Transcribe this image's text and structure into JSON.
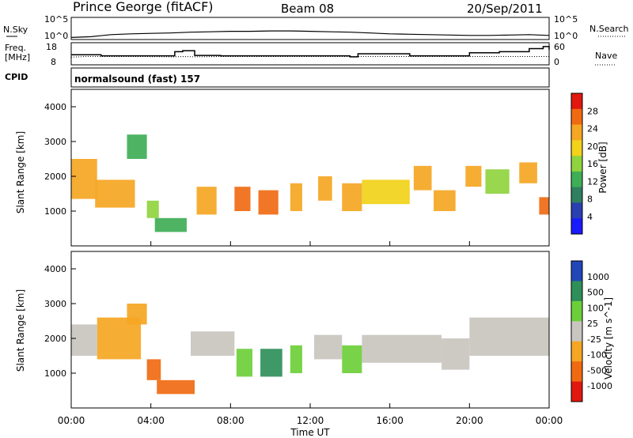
{
  "header": {
    "station": "Prince George (fitACF)",
    "beam": "Beam 08",
    "date": "20/Sep/2011"
  },
  "noise_panel": {
    "left_label": "N.Sky",
    "right_label": "N.Search",
    "left_ticks": [
      "10^5",
      "10^0"
    ],
    "right_ticks": [
      "10^5",
      "10^0"
    ]
  },
  "freq_panel": {
    "left_label_top": "Freq.",
    "left_label_bottom": "[MHz]",
    "left_ticks": [
      "18",
      "8"
    ],
    "right_label": "Nave",
    "right_ticks": [
      "60",
      "0"
    ]
  },
  "cpid": {
    "label": "CPID",
    "text": "normalsound (fast) 157"
  },
  "power_panel": {
    "ylabel": "Slant Range [km]",
    "yticks": [
      "4000",
      "3000",
      "2000",
      "1000"
    ],
    "colorbar_label": "Power [dB]",
    "colorbar_ticks": [
      "28",
      "24",
      "20",
      "16",
      "12",
      "8",
      "4"
    ],
    "colors": [
      "#1a1aff",
      "#2a3fb0",
      "#2f7f60",
      "#3fae57",
      "#8fd43f",
      "#f2d21a",
      "#f5a623",
      "#f06a12",
      "#e0180f"
    ]
  },
  "velocity_panel": {
    "ylabel": "Slant Range [km]",
    "yticks": [
      "4000",
      "3000",
      "2000",
      "1000"
    ],
    "colorbar_label": "Velocity [m s^-1]",
    "colorbar_ticks": [
      "1000",
      "500",
      "100",
      "25",
      "-25",
      "-100",
      "-500",
      "-1000"
    ],
    "colors": [
      "#2046b8",
      "#2f8f5a",
      "#6ccf3a",
      "#c9c6bf",
      "#f5a623",
      "#f06a12",
      "#e0180f"
    ]
  },
  "xaxis": {
    "label": "Time UT",
    "ticks": [
      "00:00",
      "04:00",
      "08:00",
      "12:00",
      "16:00",
      "20:00",
      "00:00"
    ]
  },
  "chart_data": [
    {
      "type": "line",
      "title": "N.Sky / N.Search",
      "x_hours": [
        0,
        1,
        2,
        3,
        4,
        5,
        6,
        7,
        8,
        9,
        10,
        11,
        12,
        13,
        14,
        15,
        16,
        17,
        18,
        19,
        20,
        21,
        22,
        23,
        24
      ],
      "series": [
        {
          "name": "N.Sky",
          "values_log10": [
            0.3,
            0.5,
            1.0,
            1.2,
            1.3,
            1.4,
            1.6,
            1.7,
            1.8,
            1.8,
            1.9,
            1.9,
            1.8,
            1.7,
            1.6,
            1.4,
            1.2,
            1.1,
            1.0,
            0.9,
            0.8,
            0.8,
            0.9,
            1.0,
            0.8
          ]
        }
      ],
      "ylim_log10": [
        0,
        5
      ]
    },
    {
      "type": "line",
      "title": "Freq. / Nave",
      "x_hours": [
        0,
        0.7,
        1.5,
        3.5,
        5.2,
        5.6,
        6.2,
        7.5,
        10,
        14,
        14.4,
        17,
        19.4,
        20,
        21.5,
        23,
        23.7,
        24
      ],
      "series": [
        {
          "name": "Freq. [MHz]",
          "values": [
            12.5,
            12.5,
            12.0,
            12.0,
            14.0,
            14.5,
            12.2,
            12.0,
            12.0,
            11.5,
            13.0,
            12.0,
            12.0,
            13.5,
            14.0,
            15.5,
            16.5,
            15.0
          ]
        },
        {
          "name": "Nave",
          "values": [
            20,
            22,
            22,
            22,
            21,
            22,
            21,
            22,
            22,
            22,
            22,
            22,
            22,
            22,
            22,
            22,
            22,
            22
          ]
        }
      ],
      "ylim": [
        8,
        18
      ],
      "y2lim": [
        0,
        60
      ]
    },
    {
      "type": "heatmap",
      "title": "Power [dB]",
      "xlabel": "Time UT",
      "ylabel": "Slant Range [km]",
      "x_hours_range": [
        0,
        24
      ],
      "ylim": [
        0,
        4500
      ],
      "colorbar_range": [
        0,
        30
      ],
      "regions": [
        {
          "t0": 0.0,
          "t1": 1.3,
          "r0": 1350,
          "r1": 2500,
          "value": 22
        },
        {
          "t0": 1.2,
          "t1": 3.2,
          "r0": 1100,
          "r1": 1900,
          "value": 20
        },
        {
          "t0": 2.8,
          "t1": 3.8,
          "r0": 2500,
          "r1": 3200,
          "value": 12
        },
        {
          "t0": 3.8,
          "t1": 4.4,
          "r0": 800,
          "r1": 1300,
          "value": 14
        },
        {
          "t0": 4.2,
          "t1": 5.8,
          "r0": 400,
          "r1": 800,
          "value": 10
        },
        {
          "t0": 6.3,
          "t1": 7.3,
          "r0": 900,
          "r1": 1700,
          "value": 22
        },
        {
          "t0": 8.2,
          "t1": 9.0,
          "r0": 1000,
          "r1": 1700,
          "value": 24
        },
        {
          "t0": 9.4,
          "t1": 10.4,
          "r0": 900,
          "r1": 1600,
          "value": 24
        },
        {
          "t0": 11.0,
          "t1": 11.6,
          "r0": 1000,
          "r1": 1800,
          "value": 22
        },
        {
          "t0": 12.4,
          "t1": 13.1,
          "r0": 1300,
          "r1": 2000,
          "value": 20
        },
        {
          "t0": 13.6,
          "t1": 14.6,
          "r0": 1000,
          "r1": 1800,
          "value": 22
        },
        {
          "t0": 14.6,
          "t1": 17.0,
          "r0": 1200,
          "r1": 1900,
          "value": 18
        },
        {
          "t0": 17.2,
          "t1": 18.1,
          "r0": 1600,
          "r1": 2300,
          "value": 22
        },
        {
          "t0": 18.2,
          "t1": 19.3,
          "r0": 1000,
          "r1": 1600,
          "value": 20
        },
        {
          "t0": 19.8,
          "t1": 20.6,
          "r0": 1700,
          "r1": 2300,
          "value": 20
        },
        {
          "t0": 20.8,
          "t1": 22.0,
          "r0": 1500,
          "r1": 2200,
          "value": 14
        },
        {
          "t0": 22.5,
          "t1": 23.4,
          "r0": 1800,
          "r1": 2400,
          "value": 22
        },
        {
          "t0": 23.5,
          "t1": 24.0,
          "r0": 900,
          "r1": 1400,
          "value": 24
        }
      ]
    },
    {
      "type": "heatmap",
      "title": "Velocity [m s^-1]",
      "xlabel": "Time UT",
      "ylabel": "Slant Range [km]",
      "x_hours_range": [
        0,
        24
      ],
      "ylim": [
        0,
        4500
      ],
      "colorbar_range": [
        -1000,
        1000
      ],
      "regions": [
        {
          "t0": 0.0,
          "t1": 1.3,
          "r0": 1500,
          "r1": 2400,
          "value": 0
        },
        {
          "t0": 1.3,
          "t1": 3.5,
          "r0": 1400,
          "r1": 2600,
          "value": -200
        },
        {
          "t0": 2.8,
          "t1": 3.8,
          "r0": 2400,
          "r1": 3000,
          "value": -300
        },
        {
          "t0": 3.8,
          "t1": 4.5,
          "r0": 800,
          "r1": 1400,
          "value": -500
        },
        {
          "t0": 4.3,
          "t1": 6.2,
          "r0": 400,
          "r1": 800,
          "value": -700
        },
        {
          "t0": 6.0,
          "t1": 8.2,
          "r0": 1500,
          "r1": 2200,
          "value": 0
        },
        {
          "t0": 8.3,
          "t1": 9.1,
          "r0": 900,
          "r1": 1700,
          "value": 400
        },
        {
          "t0": 9.5,
          "t1": 10.6,
          "r0": 900,
          "r1": 1700,
          "value": 500
        },
        {
          "t0": 11.0,
          "t1": 11.6,
          "r0": 1000,
          "r1": 1800,
          "value": 300
        },
        {
          "t0": 12.2,
          "t1": 13.6,
          "r0": 1400,
          "r1": 2100,
          "value": 0
        },
        {
          "t0": 13.6,
          "t1": 14.6,
          "r0": 1000,
          "r1": 1800,
          "value": 200
        },
        {
          "t0": 14.6,
          "t1": 18.6,
          "r0": 1300,
          "r1": 2100,
          "value": 0
        },
        {
          "t0": 18.6,
          "t1": 20.0,
          "r0": 1100,
          "r1": 2000,
          "value": 0
        },
        {
          "t0": 20.0,
          "t1": 24.0,
          "r0": 1500,
          "r1": 2600,
          "value": 0
        }
      ]
    }
  ]
}
